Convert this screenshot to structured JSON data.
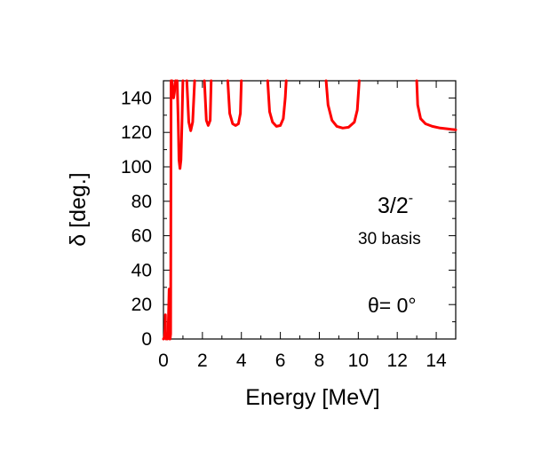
{
  "chart_data": {
    "type": "line",
    "title": "",
    "xlabel": "Energy [MeV]",
    "ylabel": "δ [deg.]",
    "xlim": [
      0,
      15
    ],
    "ylim": [
      0,
      150
    ],
    "xticks": [
      0,
      2,
      4,
      6,
      8,
      10,
      12,
      14
    ],
    "yticks": [
      0,
      20,
      40,
      60,
      80,
      100,
      120,
      140
    ],
    "grid": false,
    "legend": "none",
    "series": [
      {
        "color": "#ff0000",
        "segments": [
          [
            [
              0.0,
              0
            ],
            [
              0.05,
              1
            ],
            [
              0.08,
              6
            ],
            [
              0.1,
              14
            ],
            [
              0.11,
              1
            ],
            [
              0.13,
              0
            ]
          ],
          [
            [
              0.2,
              0
            ],
            [
              0.24,
              5
            ],
            [
              0.27,
              18
            ],
            [
              0.29,
              29
            ],
            [
              0.3,
              8
            ],
            [
              0.32,
              0
            ],
            [
              0.34,
              0
            ],
            [
              0.37,
              3
            ],
            [
              0.38,
              60
            ],
            [
              0.39,
              150
            ]
          ],
          [
            [
              0.44,
              150
            ],
            [
              0.48,
              143
            ],
            [
              0.52,
              140
            ],
            [
              0.56,
              143
            ],
            [
              0.62,
              150
            ]
          ],
          [
            [
              0.7,
              150
            ],
            [
              0.76,
              125
            ],
            [
              0.8,
              104
            ],
            [
              0.85,
              99
            ],
            [
              0.9,
              104
            ],
            [
              0.95,
              125
            ],
            [
              1.0,
              150
            ]
          ],
          [
            [
              1.2,
              150
            ],
            [
              1.3,
              126
            ],
            [
              1.4,
              121
            ],
            [
              1.5,
              126
            ],
            [
              1.6,
              150
            ]
          ],
          [
            [
              2.1,
              150
            ],
            [
              2.2,
              127
            ],
            [
              2.3,
              124
            ],
            [
              2.4,
              127
            ],
            [
              2.45,
              150
            ]
          ],
          [
            [
              3.3,
              150
            ],
            [
              3.4,
              131
            ],
            [
              3.55,
              125
            ],
            [
              3.7,
              124
            ],
            [
              3.85,
              125
            ],
            [
              3.95,
              131
            ],
            [
              4.0,
              150
            ]
          ],
          [
            [
              5.35,
              150
            ],
            [
              5.45,
              132
            ],
            [
              5.6,
              126
            ],
            [
              5.8,
              123.5
            ],
            [
              6.0,
              124
            ],
            [
              6.15,
              128
            ],
            [
              6.25,
              140
            ],
            [
              6.3,
              150
            ]
          ],
          [
            [
              8.35,
              150
            ],
            [
              8.45,
              136
            ],
            [
              8.65,
              127
            ],
            [
              8.9,
              123.5
            ],
            [
              9.2,
              122.5
            ],
            [
              9.5,
              123
            ],
            [
              9.8,
              126
            ],
            [
              9.95,
              133
            ],
            [
              10.05,
              150
            ]
          ],
          [
            [
              13.0,
              150
            ],
            [
              13.05,
              136
            ],
            [
              13.2,
              128
            ],
            [
              13.45,
              125
            ],
            [
              13.8,
              123.5
            ],
            [
              14.2,
              122.5
            ],
            [
              14.6,
              122
            ],
            [
              15.0,
              121.5
            ]
          ]
        ]
      }
    ]
  },
  "annotations": {
    "state": "3/2",
    "state_sup": "-",
    "basis": "30 basis",
    "theta": "θ=  0°"
  }
}
